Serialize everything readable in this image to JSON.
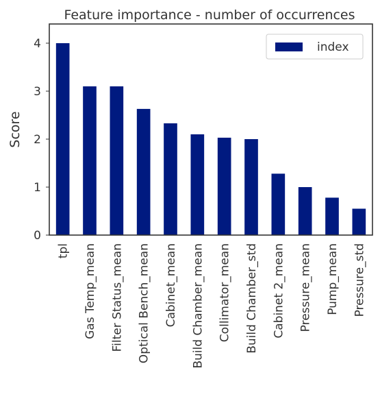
{
  "chart_data": {
    "type": "bar",
    "title": "Feature importance - number of occurrences",
    "xlabel": "",
    "ylabel": "Score",
    "ylim": [
      0,
      4.4
    ],
    "yticks": [
      0,
      1,
      2,
      3,
      4
    ],
    "grid": false,
    "legend_position": "top-right",
    "categories": [
      "tpl",
      "Gas Temp_mean",
      "Filter Status_mean",
      "Optical Bench_mean",
      "Cabinet_mean",
      "Build Chamber_mean",
      "Collimator_mean",
      "Build Chamber_std",
      "Cabinet 2_mean",
      "Pressure_mean",
      "Pump_mean",
      "Pressure_std"
    ],
    "series": [
      {
        "name": "index",
        "color": "#001a80",
        "values": [
          4.0,
          3.1,
          3.1,
          2.63,
          2.33,
          2.1,
          2.03,
          2.0,
          1.28,
          1.0,
          0.78,
          0.55
        ]
      }
    ]
  }
}
